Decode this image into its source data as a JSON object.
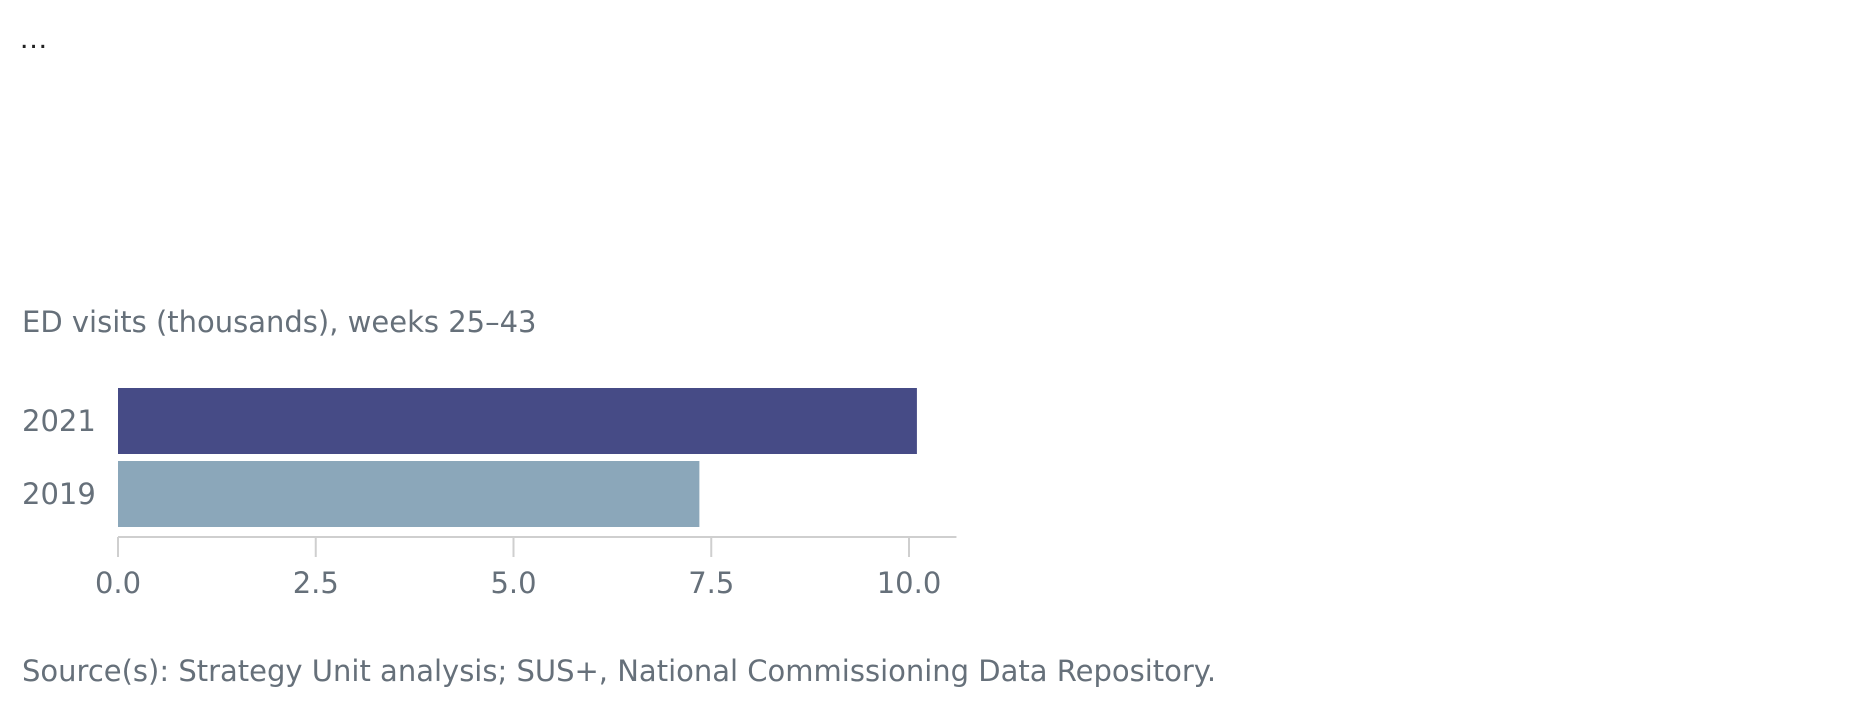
{
  "menu": {
    "label": "..."
  },
  "chart_data": {
    "type": "bar",
    "orientation": "horizontal",
    "ylabel": "ED visits (thousands), weeks 25–43",
    "categories": [
      "2021",
      "2019"
    ],
    "values": [
      10.1,
      7.35
    ],
    "colors": [
      "#464b86",
      "#8ba7ba"
    ],
    "xlim": [
      0,
      10.6
    ],
    "xticks": [
      "0.0",
      "2.5",
      "5.0",
      "7.5",
      "10.0"
    ],
    "grid": false,
    "legend": "none",
    "source": "Source(s): Strategy Unit analysis; SUS+, National Commissioning Data Repository."
  }
}
